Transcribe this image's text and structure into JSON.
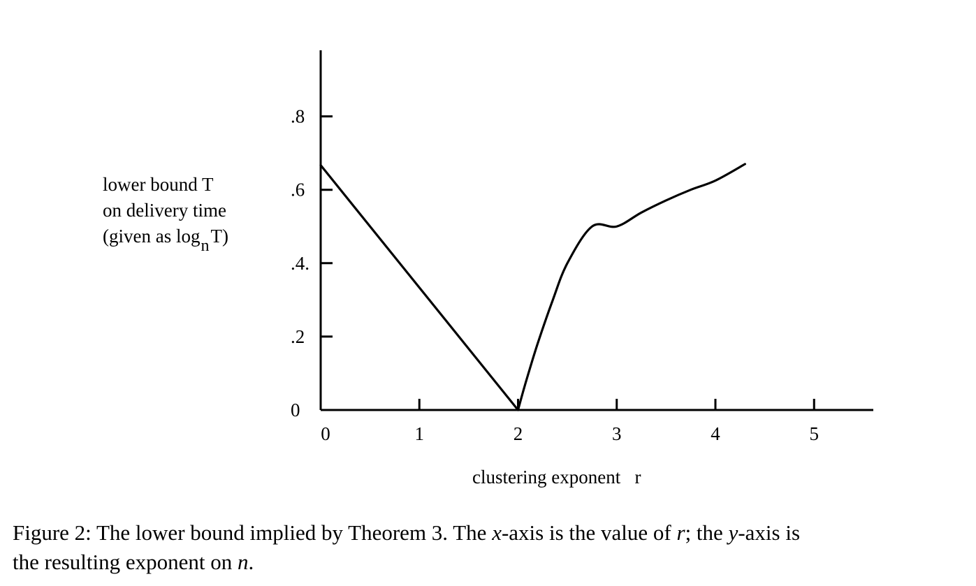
{
  "chart_data": {
    "type": "line",
    "xlabel": "clustering exponent   r",
    "ylabel": {
      "line1": "lower bound T",
      "line2": "on delivery time",
      "line3_pre": "(given as log",
      "line3_sub": "n",
      "line3_post": "T)"
    },
    "xlim": [
      0,
      5.6
    ],
    "ylim": [
      0,
      0.98
    ],
    "xticks": [
      {
        "value": 0,
        "label": "0"
      },
      {
        "value": 1,
        "label": "1"
      },
      {
        "value": 2,
        "label": "2"
      },
      {
        "value": 3,
        "label": "3"
      },
      {
        "value": 4,
        "label": "4"
      },
      {
        "value": 5,
        "label": "5"
      }
    ],
    "yticks": [
      {
        "value": 0,
        "label": "0"
      },
      {
        "value": 0.2,
        "label": ".2"
      },
      {
        "value": 0.4,
        "label": ".4."
      },
      {
        "value": 0.6,
        "label": ".6"
      },
      {
        "value": 0.8,
        "label": ".8"
      }
    ],
    "series": [
      {
        "x": [
          0,
          2
        ],
        "y": [
          0.667,
          0
        ]
      },
      {
        "x": [
          2,
          2.05,
          2.1,
          2.2,
          2.35,
          2.5,
          2.75,
          3.0,
          3.25,
          3.5,
          3.75,
          4.0,
          4.3
        ],
        "y": [
          0,
          0.049,
          0.095,
          0.182,
          0.298,
          0.4,
          0.5,
          0.5,
          0.538,
          0.571,
          0.6,
          0.625,
          0.67
        ]
      }
    ],
    "grid": false,
    "legend": "none"
  },
  "caption": {
    "line1_parts": [
      {
        "t": "Figure 2: The lower bound implied by Theorem 3. The ",
        "i": false
      },
      {
        "t": "x",
        "i": true
      },
      {
        "t": "-axis is the value of ",
        "i": false
      },
      {
        "t": "r",
        "i": true
      },
      {
        "t": "; the ",
        "i": false
      },
      {
        "t": "y",
        "i": true
      },
      {
        "t": "-axis is",
        "i": false
      }
    ],
    "line2_parts": [
      {
        "t": "the resulting exponent on ",
        "i": false
      },
      {
        "t": "n",
        "i": true
      },
      {
        "t": ".",
        "i": false
      }
    ]
  }
}
